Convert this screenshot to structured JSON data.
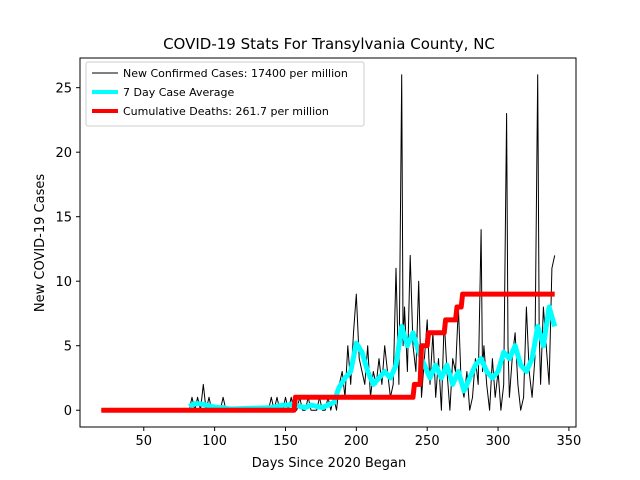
{
  "chart_data": {
    "type": "line",
    "title": "COVID-19 Stats For Transylvania County, NC",
    "xlabel": "Days Since 2020 Began",
    "ylabel": "New COVID-19 Cases",
    "xlim": [
      5,
      355
    ],
    "ylim": [
      -1.3,
      27.3
    ],
    "xticks": [
      50,
      100,
      150,
      200,
      250,
      300,
      350
    ],
    "yticks": [
      0,
      5,
      10,
      15,
      20,
      25
    ],
    "grid": false,
    "legend_position": "top-left",
    "series": [
      {
        "name": "New Confirmed Cases: 17400 per million",
        "color": "#000000",
        "style": "thin",
        "x": [
          20,
          82,
          84,
          86,
          88,
          90,
          92,
          94,
          96,
          98,
          100,
          102,
          104,
          106,
          108,
          110,
          112,
          114,
          116,
          138,
          140,
          142,
          144,
          146,
          148,
          150,
          152,
          154,
          156,
          158,
          160,
          162,
          164,
          166,
          168,
          170,
          172,
          174,
          176,
          178,
          180,
          182,
          184,
          186,
          188,
          190,
          192,
          194,
          196,
          198,
          200,
          202,
          204,
          206,
          208,
          210,
          212,
          214,
          216,
          218,
          220,
          222,
          224,
          226,
          228,
          230,
          232,
          233,
          234,
          236,
          238,
          240,
          242,
          244,
          246,
          248,
          250,
          252,
          254,
          256,
          258,
          260,
          262,
          264,
          266,
          268,
          270,
          272,
          274,
          276,
          278,
          280,
          282,
          284,
          286,
          288,
          289,
          290,
          292,
          294,
          296,
          298,
          300,
          302,
          304,
          306,
          307,
          308,
          310,
          312,
          314,
          316,
          318,
          320,
          322,
          324,
          326,
          328,
          329,
          330,
          332,
          334,
          336,
          338,
          340
        ],
        "y": [
          0,
          0,
          1,
          0,
          1,
          0,
          2,
          0,
          1,
          0,
          0,
          0,
          0,
          1,
          0,
          0,
          0,
          0,
          0,
          0,
          1,
          0,
          1,
          0,
          0,
          1,
          0,
          1,
          0,
          0,
          1,
          0,
          0,
          1,
          0,
          0,
          0,
          1,
          0,
          0,
          1,
          0,
          1,
          0,
          2,
          3,
          1,
          5,
          2,
          6,
          9,
          4,
          3,
          2,
          5,
          1,
          3,
          2,
          4,
          2,
          5,
          3,
          1,
          2,
          11,
          2,
          26,
          5,
          8,
          3,
          12,
          5,
          3,
          10,
          1,
          4,
          7,
          2,
          6,
          1,
          4,
          0,
          7,
          3,
          0,
          4,
          3,
          8,
          2,
          1,
          3,
          0,
          1,
          4,
          2,
          14,
          3,
          5,
          2,
          0,
          4,
          1,
          3,
          0,
          2,
          23,
          5,
          1,
          4,
          6,
          2,
          0,
          1,
          8,
          3,
          1,
          4,
          26,
          6,
          2,
          8,
          5,
          2,
          11,
          12
        ]
      },
      {
        "name": "7 Day Case Average",
        "color": "#00ffff",
        "style": "thick",
        "x": [
          82,
          86,
          90,
          94,
          98,
          102,
          106,
          110,
          114,
          140,
          144,
          148,
          152,
          156,
          160,
          164,
          168,
          172,
          176,
          180,
          184,
          188,
          192,
          196,
          200,
          204,
          208,
          212,
          216,
          220,
          224,
          228,
          232,
          236,
          240,
          244,
          248,
          252,
          256,
          260,
          264,
          268,
          272,
          276,
          280,
          284,
          288,
          292,
          296,
          300,
          304,
          308,
          312,
          316,
          320,
          324,
          328,
          332,
          336,
          340
        ],
        "y": [
          0.3,
          0.5,
          0.5,
          0.4,
          0.3,
          0.2,
          0.2,
          0.1,
          0.1,
          0.2,
          0.3,
          0.4,
          0.4,
          0.5,
          0.3,
          0.2,
          0.4,
          0.3,
          0.2,
          0.4,
          0.6,
          1.8,
          2.5,
          3.0,
          5.2,
          4.5,
          3.0,
          2.0,
          2.5,
          3.0,
          2.5,
          3.5,
          6.5,
          5.0,
          6.0,
          4.5,
          3.5,
          2.5,
          3.5,
          2.5,
          3.5,
          2.0,
          3.0,
          1.5,
          2.5,
          3.5,
          4.0,
          3.0,
          2.5,
          3.0,
          4.5,
          4.0,
          5.0,
          3.5,
          3.0,
          4.0,
          6.5,
          5.0,
          8.0,
          6.5
        ]
      },
      {
        "name": "Cumulative Deaths: 261.7 per million",
        "color": "#ff0000",
        "style": "step",
        "x": [
          20,
          156,
          157,
          240,
          241,
          245,
          246,
          250,
          251,
          262,
          263,
          270,
          271,
          274,
          275,
          340
        ],
        "y": [
          0,
          0,
          1,
          1,
          2,
          2,
          5,
          5,
          6,
          6,
          7,
          7,
          8,
          8,
          9,
          9
        ]
      }
    ]
  }
}
